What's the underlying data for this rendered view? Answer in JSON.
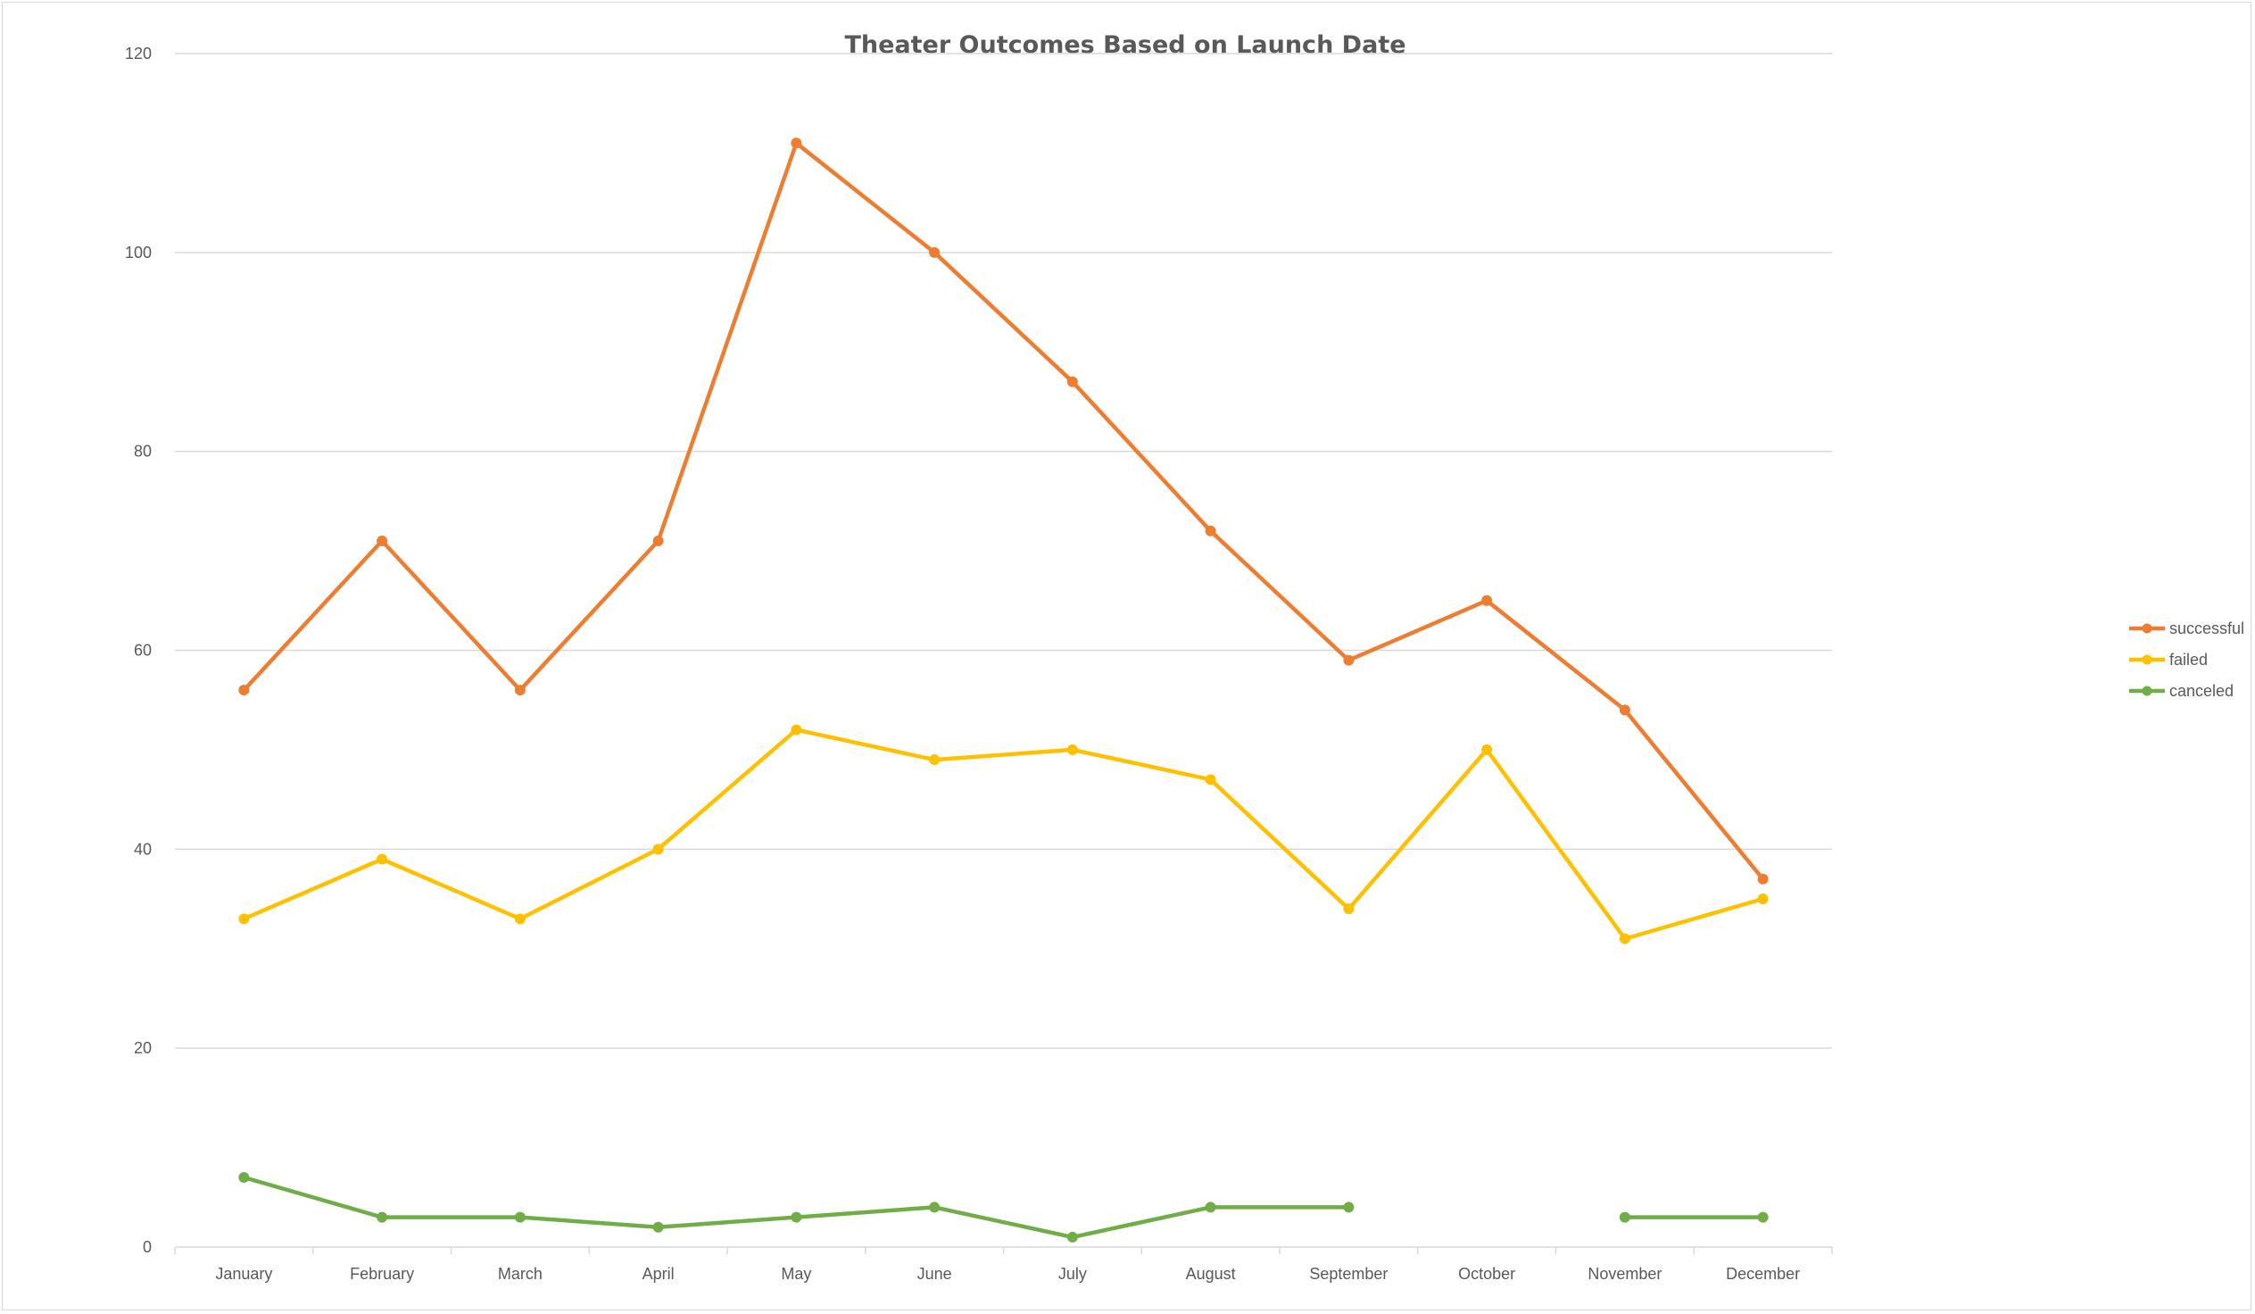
{
  "chart_data": {
    "type": "line",
    "title": "Theater Outcomes Based on Launch Date",
    "xlabel": "",
    "ylabel": "",
    "categories": [
      "January",
      "February",
      "March",
      "April",
      "May",
      "June",
      "July",
      "August",
      "September",
      "October",
      "November",
      "December"
    ],
    "ylim": [
      0,
      120
    ],
    "yticks": [
      "0",
      "20",
      "40",
      "60",
      "80",
      "100",
      "120"
    ],
    "grid": true,
    "legend_position": "right",
    "series": [
      {
        "name": "successful",
        "color": "#ed7d31",
        "values": [
          56,
          71,
          56,
          71,
          111,
          100,
          87,
          72,
          59,
          65,
          54,
          37
        ]
      },
      {
        "name": "failed",
        "color": "#ffc000",
        "values": [
          33,
          39,
          33,
          40,
          52,
          49,
          50,
          47,
          34,
          50,
          31,
          35
        ]
      },
      {
        "name": "canceled",
        "color": "#70ad47",
        "values": [
          7,
          3,
          3,
          2,
          3,
          4,
          1,
          4,
          4,
          null,
          3,
          3
        ]
      }
    ]
  }
}
